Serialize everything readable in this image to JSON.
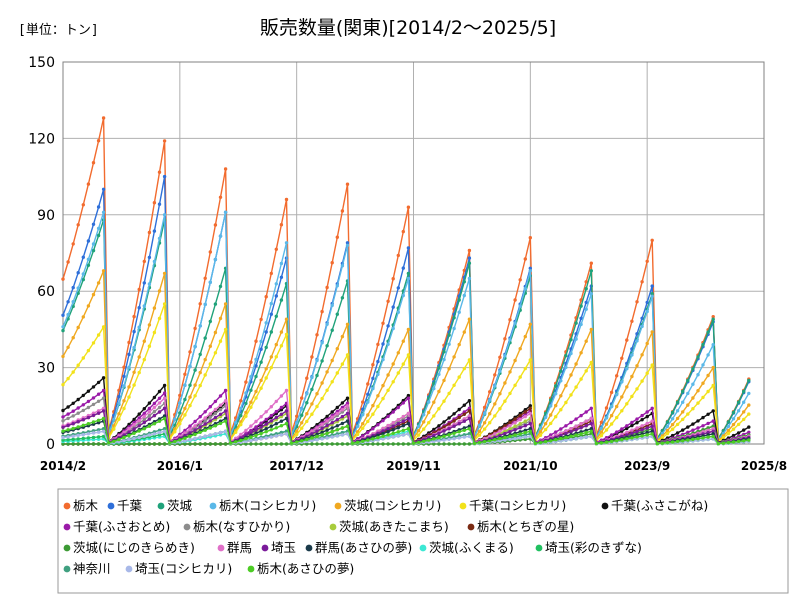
{
  "unit_label": "[単位：トン]",
  "chart_data": {
    "type": "line",
    "title": "販売数量(関東)[2014/2～2025/5]",
    "xlabel": "",
    "ylabel": "",
    "x_range": [
      "2014/2",
      "2025/8"
    ],
    "x_ticks": [
      "2014/2",
      "2016/1",
      "2017/12",
      "2019/11",
      "2021/10",
      "2023/9",
      "2025/8"
    ],
    "ylim": [
      0,
      150
    ],
    "y_ticks": [
      0,
      30,
      60,
      90,
      120,
      150
    ],
    "grid": true,
    "legend_position": "bottom",
    "pattern_note_omitted": true,
    "series": [
      {
        "name": "栃木",
        "color": "#f26b2e",
        "peaks": [
          128,
          119,
          108,
          96,
          102,
          93,
          76,
          81,
          71,
          80,
          50
        ]
      },
      {
        "name": "千葉",
        "color": "#2e6fd9",
        "peaks": [
          100,
          105,
          91,
          73,
          79,
          77,
          73,
          69,
          62,
          62,
          48
        ]
      },
      {
        "name": "茨城",
        "color": "#1fa27a",
        "peaks": [
          88,
          88,
          69,
          63,
          64,
          67,
          71,
          66,
          68,
          59,
          49
        ]
      },
      {
        "name": "栃木(コシヒカリ)",
        "color": "#5ab8e8",
        "peaks": [
          91,
          90,
          91,
          79,
          78,
          65,
          65,
          68,
          59,
          58,
          39
        ]
      },
      {
        "name": "茨城(コシヒカリ)",
        "color": "#f0a820",
        "peaks": [
          68,
          67,
          55,
          49,
          47,
          45,
          49,
          47,
          45,
          44,
          30
        ]
      },
      {
        "name": "千葉(コシヒカリ)",
        "color": "#f2e21a",
        "peaks": [
          46,
          55,
          45,
          43,
          35,
          35,
          33,
          33,
          32,
          31,
          23
        ]
      },
      {
        "name": "千葉(ふさこがね)",
        "color": "#111111",
        "peaks": [
          26,
          23,
          16,
          15,
          18,
          19,
          17,
          15,
          10,
          12,
          13
        ]
      },
      {
        "name": "千葉(ふさおとめ)",
        "color": "#9a1aa8",
        "peaks": [
          21,
          20,
          21,
          16,
          16,
          18,
          14,
          13,
          14,
          14,
          9
        ]
      },
      {
        "name": "栃木(なすひかり)",
        "color": "#8c8c8c",
        "peaks": [
          18,
          16,
          15,
          13,
          14,
          11,
          11,
          9,
          10,
          8,
          7
        ]
      },
      {
        "name": "茨城(あきたこまち)",
        "color": "#a8cc3c",
        "peaks": [
          13,
          14,
          12,
          12,
          11,
          12,
          10,
          10,
          8,
          7,
          6
        ]
      },
      {
        "name": "栃木(とちぎの星)",
        "color": "#7a2a12",
        "peaks": [
          0,
          0,
          0,
          4,
          7,
          9,
          13,
          14,
          9,
          8,
          5
        ]
      },
      {
        "name": "茨城(にじのきらめき)",
        "color": "#3c9a34",
        "peaks": [
          0,
          0,
          0,
          0,
          0,
          0,
          0,
          2,
          4,
          6,
          7
        ]
      },
      {
        "name": "群馬",
        "color": "#e070c8",
        "peaks": [
          14,
          18,
          17,
          21,
          15,
          12,
          11,
          12,
          10,
          9,
          6
        ]
      },
      {
        "name": "埼玉",
        "color": "#7a1a9a",
        "peaks": [
          13,
          14,
          13,
          13,
          12,
          10,
          10,
          8,
          8,
          7,
          5
        ]
      },
      {
        "name": "群馬(あさひの夢)",
        "color": "#1a3a4a",
        "peaks": [
          9,
          11,
          10,
          10,
          9,
          8,
          7,
          6,
          6,
          5,
          4
        ]
      },
      {
        "name": "茨城(ふくまる)",
        "color": "#3ce8d4",
        "peaks": [
          2,
          3,
          4,
          5,
          5,
          5,
          4,
          4,
          3,
          3,
          2
        ]
      },
      {
        "name": "埼玉(彩のきずな)",
        "color": "#20c060",
        "peaks": [
          3,
          4,
          5,
          5,
          4,
          4,
          4,
          3,
          3,
          3,
          2
        ]
      },
      {
        "name": "神奈川",
        "color": "#40a080",
        "peaks": [
          6,
          6,
          5,
          5,
          5,
          4,
          4,
          4,
          3,
          3,
          3
        ]
      },
      {
        "name": "埼玉(コシヒカリ)",
        "color": "#a8b8e8",
        "peaks": [
          5,
          5,
          5,
          4,
          4,
          4,
          3,
          3,
          3,
          3,
          2
        ]
      },
      {
        "name": "栃木(あさひの夢)",
        "color": "#4ccc24",
        "peaks": [
          10,
          10,
          9,
          8,
          7,
          6,
          6,
          5,
          5,
          4,
          3
        ]
      }
    ]
  }
}
